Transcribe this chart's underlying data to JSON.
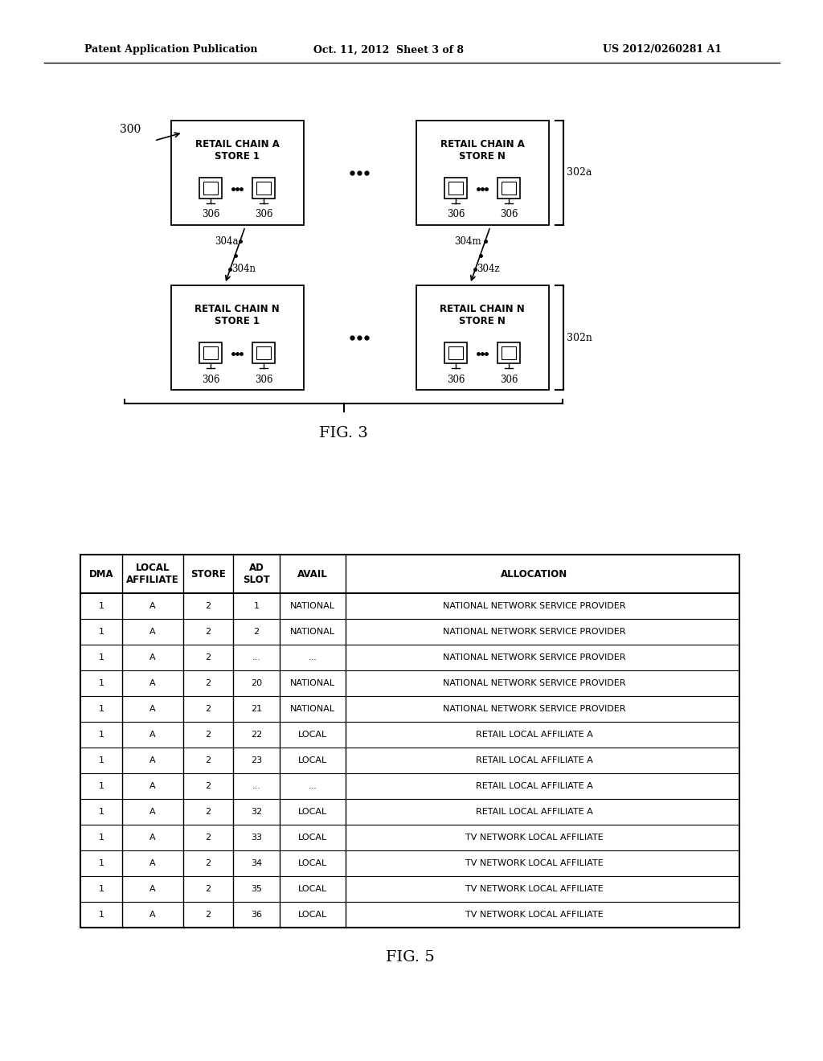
{
  "header_left": "Patent Application Publication",
  "header_mid": "Oct. 11, 2012  Sheet 3 of 8",
  "header_right": "US 2012/0260281 A1",
  "fig3_label": "FIG. 3",
  "fig5_label": "FIG. 5",
  "ref_300": "300",
  "ref_302a": "302a",
  "ref_302n": "302n",
  "ref_304a": "304a",
  "ref_304n": "304n",
  "ref_304m": "304m",
  "ref_304z": "304z",
  "ref_306": "306",
  "boxes": [
    {
      "label": "RETAIL CHAIN A\nSTORE 1",
      "col": 0,
      "row": 0
    },
    {
      "label": "RETAIL CHAIN A\nSTORE N",
      "col": 1,
      "row": 0
    },
    {
      "label": "RETAIL CHAIN N\nSTORE 1",
      "col": 0,
      "row": 1
    },
    {
      "label": "RETAIL CHAIN N\nSTORE N",
      "col": 1,
      "row": 1
    }
  ],
  "table_headers": [
    "DMA",
    "LOCAL\nAFFILIATE",
    "STORE",
    "AD\nSLOT",
    "AVAIL",
    "ALLOCATION"
  ],
  "table_rows": [
    [
      "1",
      "A",
      "2",
      "1",
      "NATIONAL",
      "NATIONAL NETWORK SERVICE PROVIDER"
    ],
    [
      "1",
      "A",
      "2",
      "2",
      "NATIONAL",
      "NATIONAL NETWORK SERVICE PROVIDER"
    ],
    [
      "1",
      "A",
      "2",
      "...",
      "...",
      "NATIONAL NETWORK SERVICE PROVIDER"
    ],
    [
      "1",
      "A",
      "2",
      "20",
      "NATIONAL",
      "NATIONAL NETWORK SERVICE PROVIDER"
    ],
    [
      "1",
      "A",
      "2",
      "21",
      "NATIONAL",
      "NATIONAL NETWORK SERVICE PROVIDER"
    ],
    [
      "1",
      "A",
      "2",
      "22",
      "LOCAL",
      "RETAIL LOCAL AFFILIATE A"
    ],
    [
      "1",
      "A",
      "2",
      "23",
      "LOCAL",
      "RETAIL LOCAL AFFILIATE A"
    ],
    [
      "1",
      "A",
      "2",
      "...",
      "...",
      "RETAIL LOCAL AFFILIATE A"
    ],
    [
      "1",
      "A",
      "2",
      "32",
      "LOCAL",
      "RETAIL LOCAL AFFILIATE A"
    ],
    [
      "1",
      "A",
      "2",
      "33",
      "LOCAL",
      "TV NETWORK LOCAL AFFILIATE"
    ],
    [
      "1",
      "A",
      "2",
      "34",
      "LOCAL",
      "TV NETWORK LOCAL AFFILIATE"
    ],
    [
      "1",
      "A",
      "2",
      "35",
      "LOCAL",
      "TV NETWORK LOCAL AFFILIATE"
    ],
    [
      "1",
      "A",
      "2",
      "36",
      "LOCAL",
      "TV NETWORK LOCAL AFFILIATE"
    ]
  ],
  "bg_color": "#ffffff",
  "line_color": "#000000",
  "text_color": "#000000"
}
